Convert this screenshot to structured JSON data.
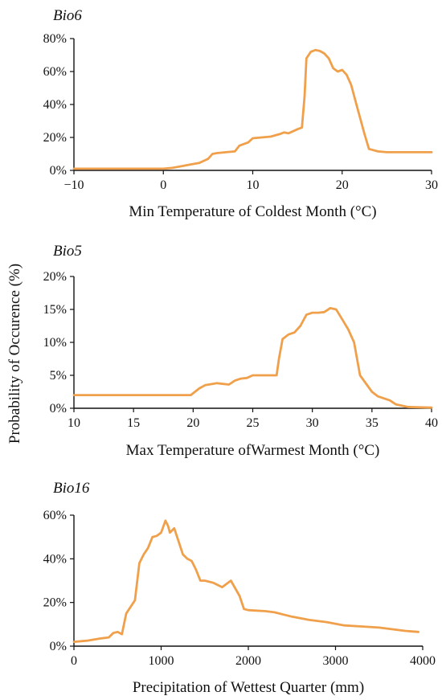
{
  "shared_ylabel": "Probability of Occurence (%)",
  "chart_data": [
    {
      "type": "line",
      "title": "Bio6",
      "xlabel": "Min Temperature of Coldest Month (°C)",
      "ylabel": "",
      "xlim": [
        -10,
        30
      ],
      "ylim": [
        0,
        80
      ],
      "xticks": [
        -10,
        0,
        10,
        20,
        30
      ],
      "xtick_labels": [
        "−10",
        "0",
        "10",
        "20",
        "30"
      ],
      "yticks": [
        0,
        20,
        40,
        60,
        80
      ],
      "ytick_labels": [
        "0%",
        "20%",
        "40%",
        "60%",
        "80%"
      ],
      "color": "#F0A04B",
      "series": [
        {
          "x": [
            -10,
            -5,
            0,
            1,
            2,
            3,
            4,
            5,
            5.5,
            6,
            7,
            8,
            8.5,
            9,
            9.5,
            10,
            11,
            12,
            13,
            13.5,
            14,
            15,
            15.5,
            15.8,
            16,
            16.5,
            17,
            17.5,
            18,
            18.5,
            19,
            19.5,
            20,
            20.5,
            21,
            21.5,
            22,
            22.5,
            23,
            24,
            25,
            30
          ],
          "y": [
            1,
            1,
            1,
            1.5,
            2.5,
            3.5,
            4.5,
            7,
            10,
            10.5,
            11,
            11.5,
            15,
            16,
            17,
            19.5,
            20,
            20.5,
            22,
            23,
            22.5,
            25,
            26,
            45,
            68,
            72,
            73,
            72.5,
            71,
            68,
            62,
            60,
            61,
            58,
            52,
            42,
            32,
            22,
            13,
            11.5,
            11,
            11
          ]
        }
      ]
    },
    {
      "type": "line",
      "title": "Bio5",
      "xlabel": "Max Temperature ofWarmest Month (°C)",
      "ylabel": "",
      "xlim": [
        10,
        40
      ],
      "ylim": [
        0,
        20
      ],
      "xticks": [
        10,
        15,
        20,
        25,
        30,
        35,
        40
      ],
      "xtick_labels": [
        "10",
        "15",
        "20",
        "25",
        "30",
        "35",
        "40"
      ],
      "yticks": [
        0,
        5,
        10,
        15,
        20
      ],
      "ytick_labels": [
        "0%",
        "5%",
        "10%",
        "15%",
        "20%"
      ],
      "color": "#F0A04B",
      "series": [
        {
          "x": [
            10,
            15,
            19.8,
            20.5,
            21,
            22,
            23,
            23.5,
            24,
            24.5,
            25,
            26,
            27,
            27.2,
            27.5,
            28,
            28.5,
            29,
            29.5,
            30,
            30.5,
            31,
            31.5,
            32,
            32.5,
            33,
            33.5,
            34,
            35,
            35.5,
            36,
            36.5,
            37,
            38,
            40
          ],
          "y": [
            2,
            2,
            2,
            3,
            3.5,
            3.8,
            3.6,
            4.2,
            4.5,
            4.6,
            5,
            5,
            5,
            7.5,
            10.5,
            11.2,
            11.5,
            12.5,
            14.2,
            14.5,
            14.5,
            14.6,
            15.2,
            15,
            13.5,
            12,
            10,
            5,
            2.5,
            1.8,
            1.5,
            1.2,
            0.6,
            0.2,
            0.1
          ]
        }
      ]
    },
    {
      "type": "line",
      "title": "Bio16",
      "xlabel": "Precipitation of Wettest Quarter (mm)",
      "ylabel": "",
      "xlim": [
        0,
        4000
      ],
      "ylim": [
        0,
        60
      ],
      "xticks": [
        0,
        1000,
        2000,
        3000,
        4000
      ],
      "xtick_labels": [
        "0",
        "1000",
        "2000",
        "3000",
        "4000"
      ],
      "yticks": [
        0,
        20,
        40,
        60
      ],
      "ytick_labels": [
        "0%",
        "20%",
        "40%",
        "60%"
      ],
      "color": "#F0A04B",
      "series": [
        {
          "x": [
            0,
            150,
            300,
            400,
            450,
            500,
            550,
            600,
            650,
            700,
            750,
            800,
            850,
            900,
            950,
            1000,
            1050,
            1080,
            1100,
            1150,
            1200,
            1250,
            1300,
            1350,
            1400,
            1450,
            1500,
            1600,
            1700,
            1800,
            1900,
            1950,
            2000,
            2200,
            2300,
            2500,
            2700,
            2900,
            3100,
            3300,
            3500,
            3800,
            3950
          ],
          "y": [
            2,
            2.5,
            3.5,
            4,
            6,
            6.5,
            5.5,
            15,
            18,
            21,
            38,
            42,
            45,
            50,
            50.5,
            52,
            57.5,
            55,
            52,
            54,
            48,
            42,
            40,
            39,
            35,
            30,
            30,
            29,
            27,
            30,
            23,
            17,
            16.5,
            16,
            15.5,
            13.5,
            12,
            11,
            9.5,
            9,
            8.5,
            7,
            6.5
          ]
        }
      ]
    }
  ]
}
